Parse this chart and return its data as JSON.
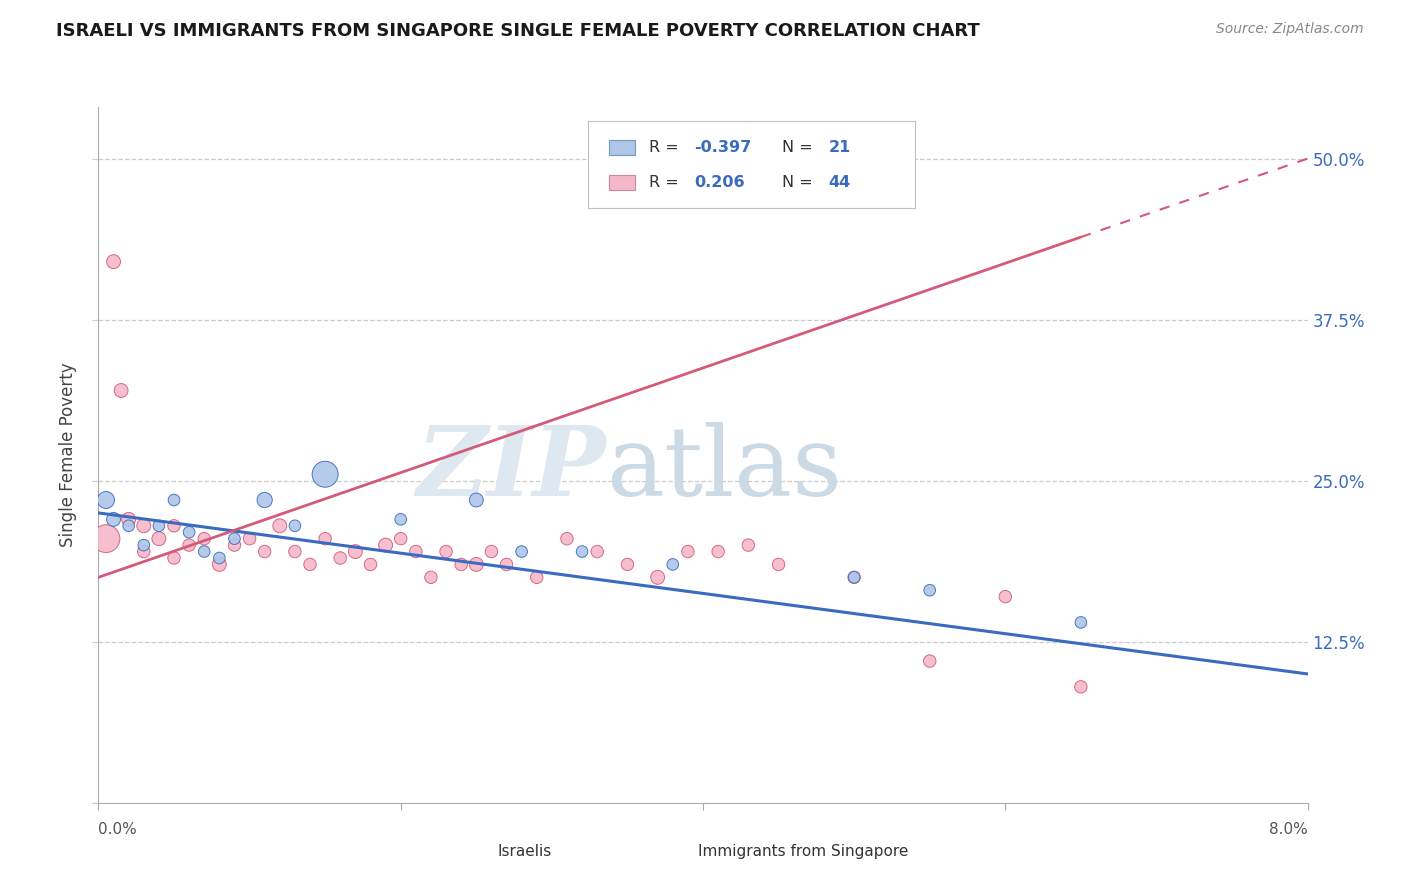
{
  "title": "ISRAELI VS IMMIGRANTS FROM SINGAPORE SINGLE FEMALE POVERTY CORRELATION CHART",
  "source": "Source: ZipAtlas.com",
  "ylabel": "Single Female Poverty",
  "xmin": 0.0,
  "xmax": 0.08,
  "ymin": 0.0,
  "ymax": 0.54,
  "yticks": [
    0.0,
    0.125,
    0.25,
    0.375,
    0.5
  ],
  "ytick_labels": [
    "",
    "12.5%",
    "25.0%",
    "37.5%",
    "50.0%"
  ],
  "israeli_color": "#aec6e8",
  "singapore_color": "#f5b8c8",
  "trend_blue": "#3a6bbf",
  "trend_pink": "#d45a7a",
  "israelis_x": [
    0.0005,
    0.001,
    0.002,
    0.003,
    0.004,
    0.005,
    0.006,
    0.007,
    0.008,
    0.009,
    0.011,
    0.013,
    0.015,
    0.02,
    0.025,
    0.028,
    0.032,
    0.038,
    0.05,
    0.055,
    0.065
  ],
  "israelis_y": [
    0.235,
    0.22,
    0.215,
    0.2,
    0.215,
    0.235,
    0.21,
    0.195,
    0.19,
    0.205,
    0.235,
    0.215,
    0.255,
    0.22,
    0.235,
    0.195,
    0.195,
    0.185,
    0.175,
    0.165,
    0.14
  ],
  "israelis_size": [
    150,
    100,
    70,
    70,
    70,
    70,
    70,
    70,
    70,
    70,
    120,
    70,
    350,
    70,
    100,
    70,
    70,
    70,
    70,
    70,
    70
  ],
  "singapore_x": [
    0.0005,
    0.001,
    0.0015,
    0.002,
    0.003,
    0.003,
    0.004,
    0.005,
    0.005,
    0.006,
    0.007,
    0.008,
    0.009,
    0.01,
    0.011,
    0.012,
    0.013,
    0.014,
    0.015,
    0.016,
    0.017,
    0.018,
    0.019,
    0.02,
    0.021,
    0.022,
    0.023,
    0.024,
    0.025,
    0.026,
    0.027,
    0.029,
    0.031,
    0.033,
    0.035,
    0.037,
    0.039,
    0.041,
    0.043,
    0.045,
    0.05,
    0.055,
    0.06,
    0.065
  ],
  "singapore_y": [
    0.205,
    0.42,
    0.32,
    0.22,
    0.215,
    0.195,
    0.205,
    0.215,
    0.19,
    0.2,
    0.205,
    0.185,
    0.2,
    0.205,
    0.195,
    0.215,
    0.195,
    0.185,
    0.205,
    0.19,
    0.195,
    0.185,
    0.2,
    0.205,
    0.195,
    0.175,
    0.195,
    0.185,
    0.185,
    0.195,
    0.185,
    0.175,
    0.205,
    0.195,
    0.185,
    0.175,
    0.195,
    0.195,
    0.2,
    0.185,
    0.175,
    0.11,
    0.16,
    0.09
  ],
  "singapore_size": [
    400,
    100,
    100,
    100,
    100,
    80,
    100,
    80,
    80,
    80,
    80,
    100,
    80,
    80,
    80,
    100,
    80,
    80,
    80,
    80,
    100,
    80,
    100,
    80,
    80,
    80,
    80,
    80,
    100,
    80,
    80,
    80,
    80,
    80,
    80,
    100,
    80,
    80,
    80,
    80,
    80,
    80,
    80,
    80
  ]
}
